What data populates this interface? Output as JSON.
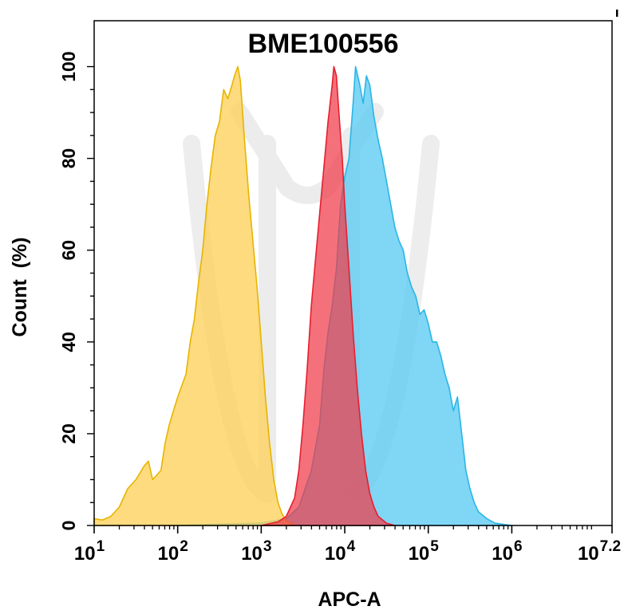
{
  "chart_data": {
    "type": "area",
    "title": "BME100556",
    "xlabel": "APC-A",
    "ylabel": "Count  (%)",
    "x_scale": "log10",
    "xlim": [
      1,
      7.2
    ],
    "ylim": [
      0,
      110
    ],
    "grid": false,
    "x_ticks": [
      {
        "value": 1,
        "base": "10",
        "exp": "1"
      },
      {
        "value": 2,
        "base": "10",
        "exp": "2"
      },
      {
        "value": 3,
        "base": "10",
        "exp": "3"
      },
      {
        "value": 4,
        "base": "10",
        "exp": "4"
      },
      {
        "value": 5,
        "base": "10",
        "exp": "5"
      },
      {
        "value": 6,
        "base": "10",
        "exp": "6"
      },
      {
        "value": 7.2,
        "base": "10",
        "exp": "7.2"
      }
    ],
    "y_ticks": [
      {
        "value": 0,
        "label": "0"
      },
      {
        "value": 20,
        "label": "20"
      },
      {
        "value": 40,
        "label": "40"
      },
      {
        "value": 60,
        "label": "60"
      },
      {
        "value": 80,
        "label": "80"
      },
      {
        "value": 100,
        "label": "100"
      }
    ],
    "series": [
      {
        "color": "#29b6e6",
        "fill": "#5ccbf2",
        "opacity": 0.78,
        "points": [
          [
            2.0,
            0
          ],
          [
            2.5,
            0.3
          ],
          [
            3.0,
            0.5
          ],
          [
            3.3,
            1.5
          ],
          [
            3.45,
            4
          ],
          [
            3.6,
            12
          ],
          [
            3.7,
            22
          ],
          [
            3.75,
            34
          ],
          [
            3.8,
            42
          ],
          [
            3.85,
            48
          ],
          [
            3.9,
            56
          ],
          [
            3.95,
            70
          ],
          [
            4.0,
            76
          ],
          [
            4.05,
            80
          ],
          [
            4.1,
            92
          ],
          [
            4.13,
            100
          ],
          [
            4.18,
            96
          ],
          [
            4.22,
            92
          ],
          [
            4.26,
            98
          ],
          [
            4.3,
            96
          ],
          [
            4.35,
            89
          ],
          [
            4.4,
            84
          ],
          [
            4.45,
            80
          ],
          [
            4.5,
            75
          ],
          [
            4.55,
            70
          ],
          [
            4.6,
            65
          ],
          [
            4.65,
            62
          ],
          [
            4.7,
            60
          ],
          [
            4.75,
            55
          ],
          [
            4.8,
            52
          ],
          [
            4.85,
            50
          ],
          [
            4.9,
            46
          ],
          [
            4.95,
            47
          ],
          [
            5.0,
            44
          ],
          [
            5.05,
            40
          ],
          [
            5.1,
            40
          ],
          [
            5.15,
            37
          ],
          [
            5.2,
            33
          ],
          [
            5.25,
            30
          ],
          [
            5.3,
            25
          ],
          [
            5.35,
            28
          ],
          [
            5.4,
            20
          ],
          [
            5.45,
            12
          ],
          [
            5.5,
            8
          ],
          [
            5.55,
            5
          ],
          [
            5.6,
            3
          ],
          [
            5.7,
            1.5
          ],
          [
            5.8,
            0.5
          ],
          [
            6.0,
            0
          ]
        ]
      },
      {
        "color": "#e8b400",
        "fill": "#fdd15a",
        "opacity": 0.78,
        "points": [
          [
            1.0,
            1.5
          ],
          [
            1.1,
            1.2
          ],
          [
            1.2,
            2
          ],
          [
            1.3,
            4
          ],
          [
            1.4,
            8
          ],
          [
            1.5,
            10
          ],
          [
            1.6,
            13
          ],
          [
            1.65,
            14
          ],
          [
            1.7,
            10
          ],
          [
            1.8,
            12
          ],
          [
            1.85,
            18
          ],
          [
            1.9,
            22
          ],
          [
            1.95,
            25
          ],
          [
            2.0,
            28
          ],
          [
            2.1,
            33
          ],
          [
            2.15,
            40
          ],
          [
            2.2,
            45
          ],
          [
            2.25,
            53
          ],
          [
            2.3,
            60
          ],
          [
            2.35,
            70
          ],
          [
            2.4,
            78
          ],
          [
            2.45,
            85
          ],
          [
            2.5,
            88
          ],
          [
            2.55,
            95
          ],
          [
            2.6,
            93
          ],
          [
            2.65,
            96
          ],
          [
            2.68,
            98
          ],
          [
            2.72,
            100
          ],
          [
            2.75,
            97
          ],
          [
            2.8,
            84
          ],
          [
            2.85,
            72
          ],
          [
            2.9,
            62
          ],
          [
            2.95,
            52
          ],
          [
            3.0,
            40
          ],
          [
            3.05,
            28
          ],
          [
            3.1,
            18
          ],
          [
            3.15,
            10
          ],
          [
            3.2,
            5
          ],
          [
            3.25,
            2.5
          ],
          [
            3.3,
            1
          ],
          [
            3.4,
            0
          ]
        ]
      },
      {
        "color": "#e81e2e",
        "fill": "#f03a48",
        "opacity": 0.72,
        "points": [
          [
            3.0,
            0
          ],
          [
            3.2,
            0.8
          ],
          [
            3.3,
            2
          ],
          [
            3.4,
            6
          ],
          [
            3.45,
            12
          ],
          [
            3.5,
            22
          ],
          [
            3.55,
            34
          ],
          [
            3.6,
            48
          ],
          [
            3.65,
            58
          ],
          [
            3.7,
            68
          ],
          [
            3.75,
            78
          ],
          [
            3.8,
            88
          ],
          [
            3.85,
            96
          ],
          [
            3.87,
            100
          ],
          [
            3.9,
            98
          ],
          [
            3.93,
            90
          ],
          [
            3.97,
            80
          ],
          [
            4.0,
            70
          ],
          [
            4.05,
            56
          ],
          [
            4.1,
            42
          ],
          [
            4.15,
            30
          ],
          [
            4.2,
            20
          ],
          [
            4.25,
            12
          ],
          [
            4.3,
            7
          ],
          [
            4.35,
            4
          ],
          [
            4.4,
            2
          ],
          [
            4.5,
            0.5
          ],
          [
            4.6,
            0
          ]
        ]
      }
    ]
  }
}
